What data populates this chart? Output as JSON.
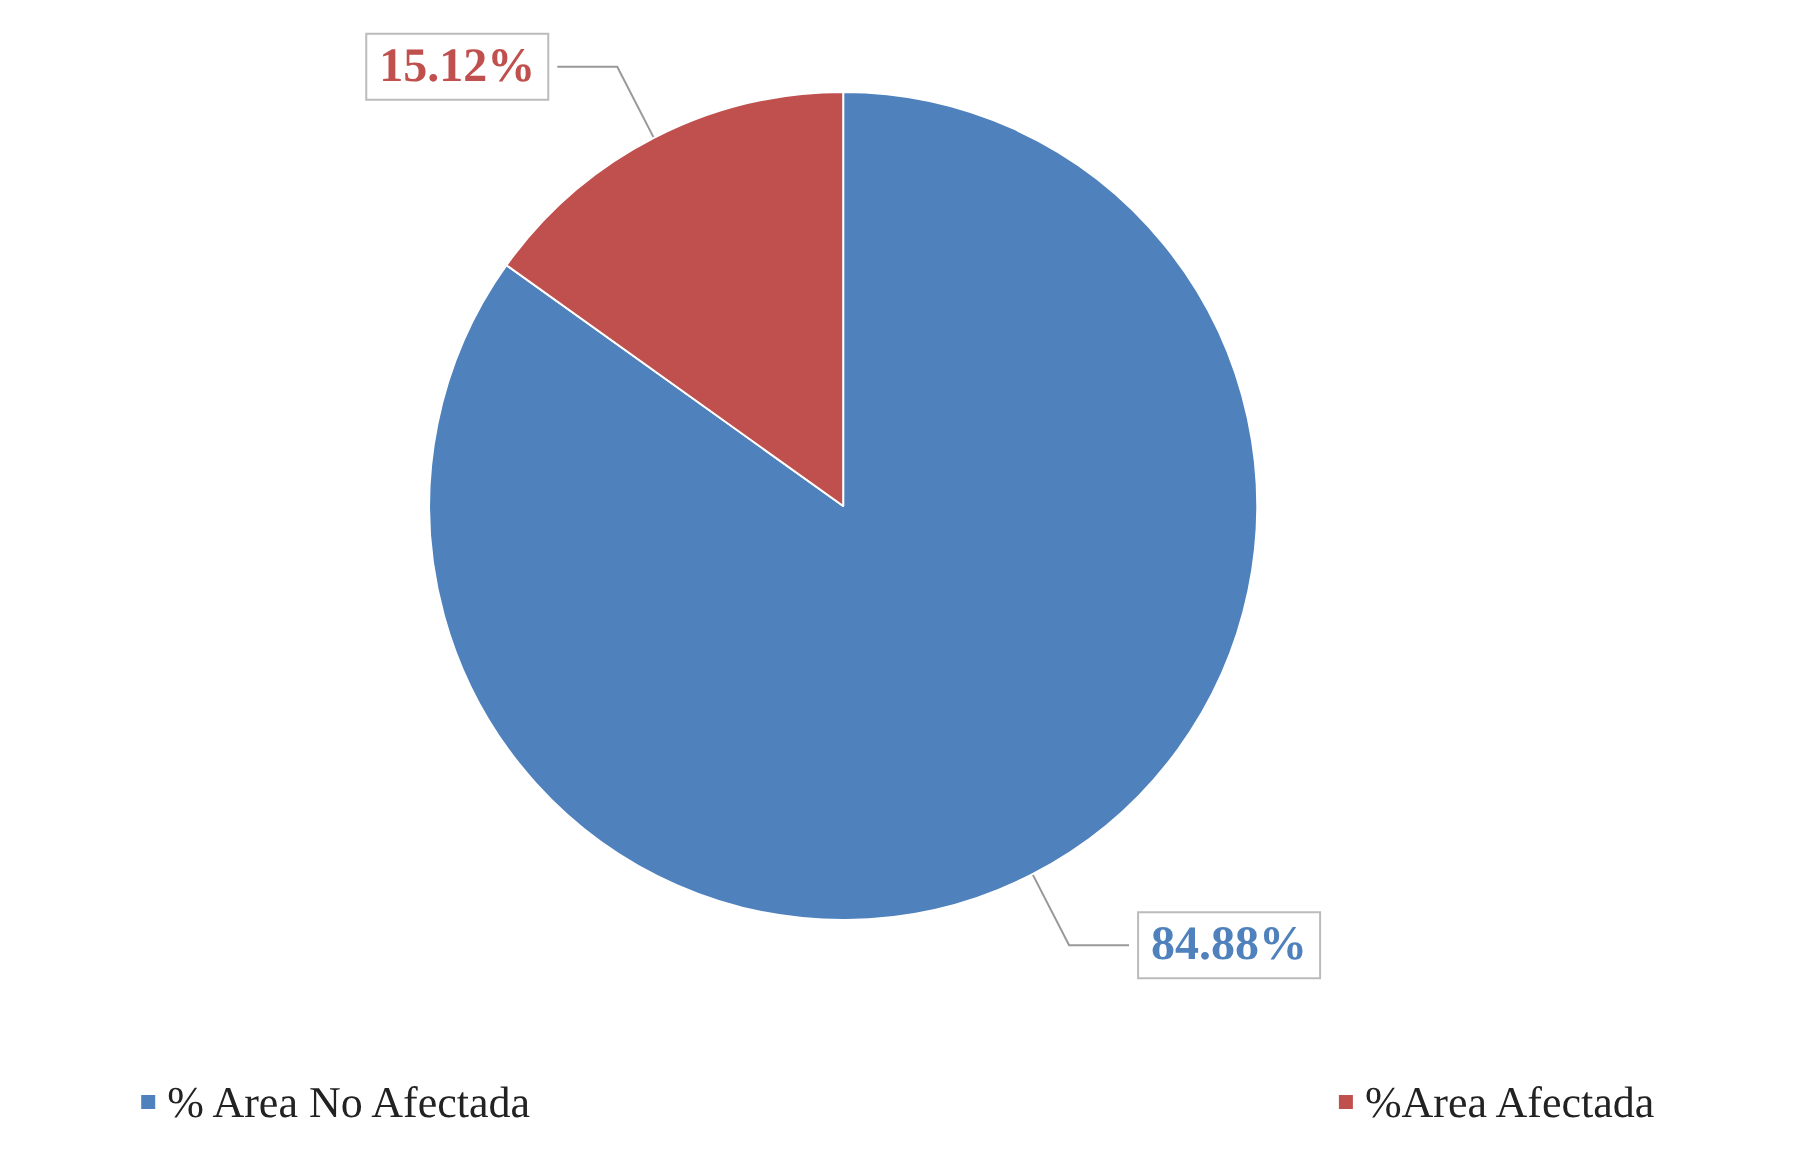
{
  "chart_data": {
    "type": "pie",
    "categories": [
      "% Area No Afectada",
      "%Area Afectada"
    ],
    "values": [
      84.88,
      15.12
    ],
    "colors": [
      "#4f81bd",
      "#c0504d"
    ],
    "value_labels": [
      "84.88%",
      "15.12%"
    ],
    "legend": "bottom"
  }
}
